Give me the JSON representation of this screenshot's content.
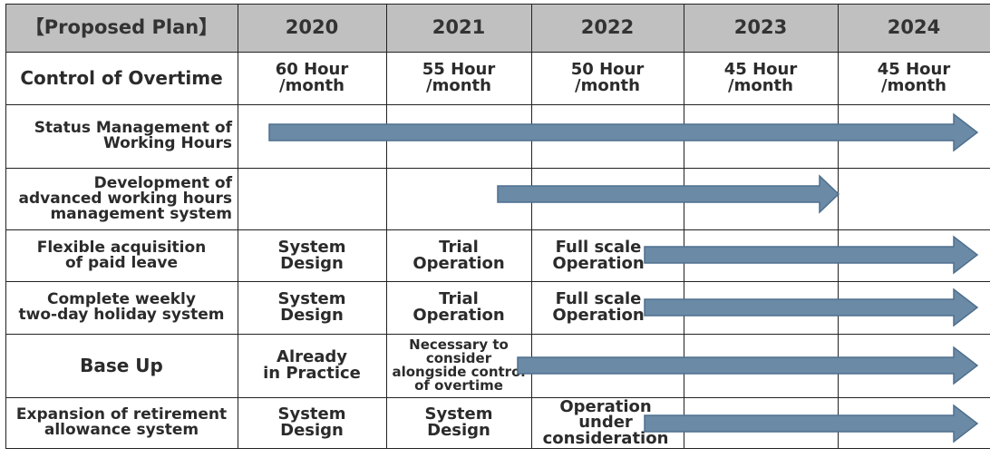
{
  "header": {
    "plan": "【Proposed Plan】",
    "years": [
      "2020",
      "2021",
      "2022",
      "2023",
      "2024"
    ]
  },
  "rows": [
    {
      "label": "Control of Overtime",
      "cells": [
        "60 Hour\n/month",
        "55 Hour\n/month",
        "50 Hour\n/month",
        "45 Hour\n/month",
        "45 Hour\n/month"
      ]
    },
    {
      "label": "Status Management of\nWorking Hours",
      "cells": [
        "",
        "",
        "",
        "",
        ""
      ]
    },
    {
      "label": "Development of\nadvanced working hours\nmanagement system",
      "cells": [
        "",
        "",
        "",
        "",
        ""
      ]
    },
    {
      "label": "Flexible acquisition\nof paid leave",
      "cells": [
        "System\nDesign",
        "Trial\nOperation",
        "Full scale\nOperation",
        "",
        ""
      ]
    },
    {
      "label": "Complete weekly\ntwo-day holiday system",
      "cells": [
        "System\nDesign",
        "Trial\nOperation",
        "Full scale\nOperation",
        "",
        ""
      ]
    },
    {
      "label": "Base Up",
      "cells": [
        "Already\nin Practice",
        "Necessary to\nconsider\nalongside control\nof overtime",
        "",
        "",
        ""
      ]
    },
    {
      "label": "Expansion of retirement\nallowance system",
      "cells": [
        "System\nDesign",
        "System\nDesign",
        "Operation\nunder\nconsideration",
        "",
        ""
      ]
    }
  ],
  "colors": {
    "header_fill": "#c0c0c0",
    "arrow_fill": "#6b8aa6",
    "arrow_stroke": "#4e6f8d",
    "grid_line": "#222222"
  }
}
